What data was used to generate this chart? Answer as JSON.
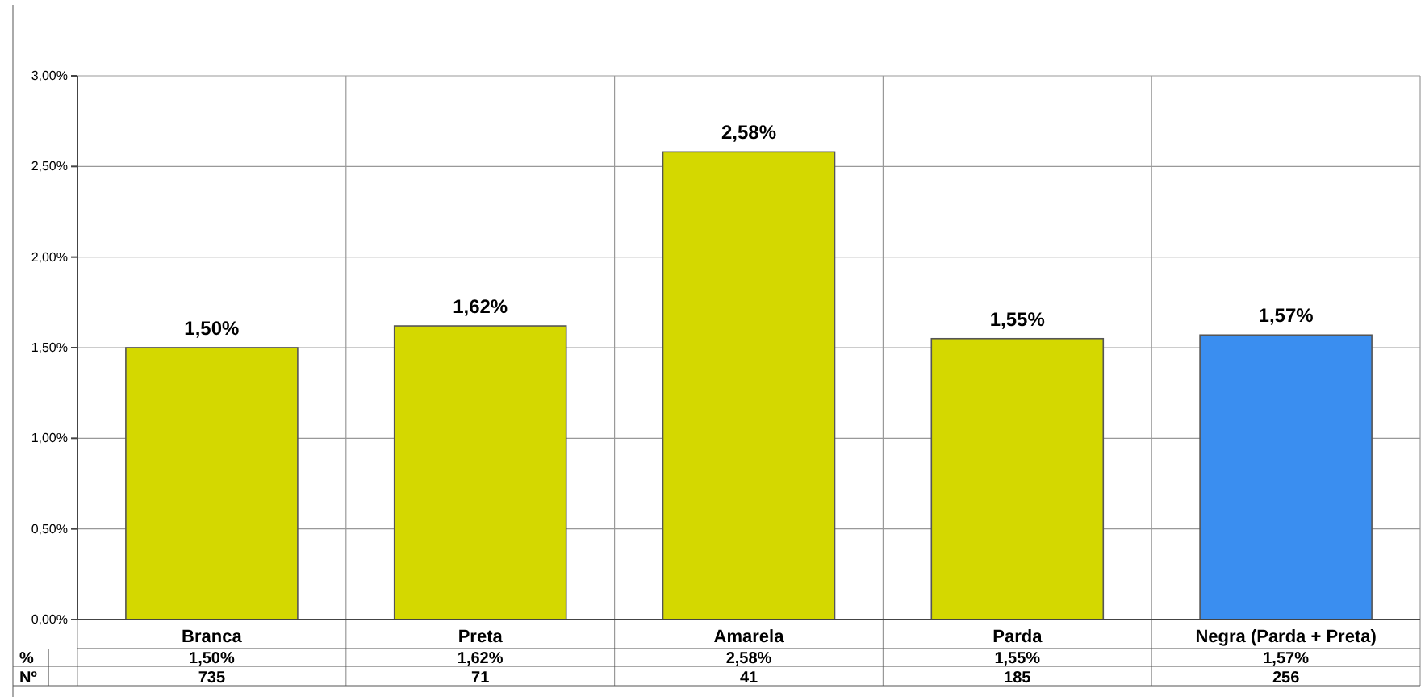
{
  "chart_data": {
    "type": "bar",
    "categories": [
      "Branca",
      "Preta",
      "Amarela",
      "Parda",
      "Negra (Parda + Preta)"
    ],
    "values": [
      1.5,
      1.62,
      2.58,
      1.55,
      1.57
    ],
    "colors": [
      "#d4d800",
      "#d4d800",
      "#d4d800",
      "#d4d800",
      "#3a8ef0"
    ],
    "value_labels": [
      "1,50%",
      "1,62%",
      "2,58%",
      "1,55%",
      "1,57%"
    ],
    "ylim": [
      0,
      3
    ],
    "yticks": [
      {
        "value": 0,
        "label": "0,00%"
      },
      {
        "value": 0.5,
        "label": "0,50%"
      },
      {
        "value": 1,
        "label": "1,00%"
      },
      {
        "value": 1.5,
        "label": "1,50%"
      },
      {
        "value": 2,
        "label": "2,00%"
      },
      {
        "value": 2.5,
        "label": "2,50%"
      },
      {
        "value": 3,
        "label": "3,00%"
      }
    ],
    "grid": true,
    "annotations": [
      "%",
      "Nº",
      "735",
      "71",
      "41",
      "185",
      "256"
    ]
  }
}
